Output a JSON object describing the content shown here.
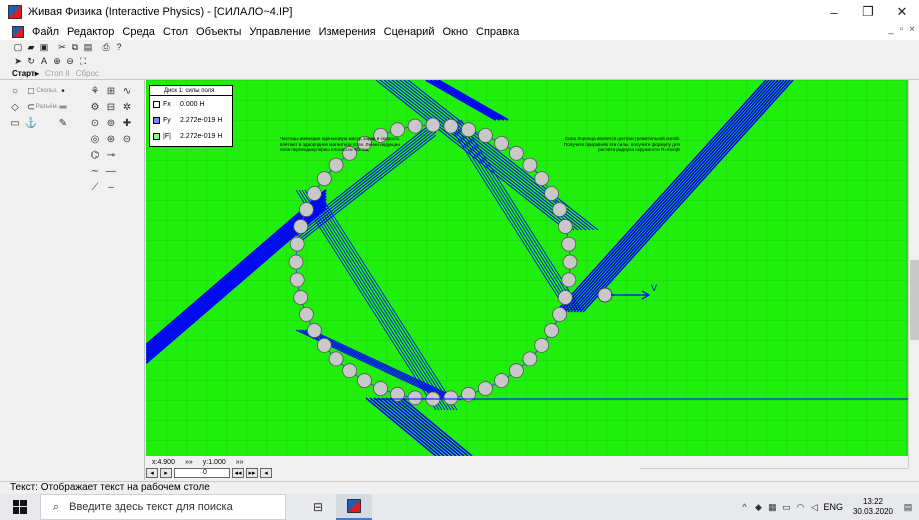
{
  "window": {
    "title": "Живая Физика (Interactive Physics) - [СИЛАЛО~4.IP]",
    "minimize": "–",
    "restore": "❐",
    "close": "✕"
  },
  "menu": {
    "items": [
      "Файл",
      "Редактор",
      "Среда",
      "Стол",
      "Объекты",
      "Управление",
      "Измерения",
      "Сценарий",
      "Окно",
      "Справка"
    ],
    "mdi_min": "_",
    "mdi_restore": "▫",
    "mdi_close": "×"
  },
  "runbar": {
    "start": "Старт▸",
    "stop": "Стоп II",
    "reset": "Сброс"
  },
  "palette": {
    "left_icons": [
      "○",
      "□",
      "◇",
      "▭",
      "⊂",
      "⊕",
      "▭",
      "⚓"
    ],
    "labels": {
      "smooth": "Скольз.",
      "rigid": "Разъём."
    },
    "tool_icons": [
      "♨",
      "⊞",
      "⇄",
      "∿",
      "⊟",
      "⊠",
      "⊡",
      "⊢",
      "⊥",
      "⊤",
      "⊣",
      "⊨",
      "⊙",
      "⊚",
      "⊛",
      "⊜",
      "⊝",
      "⊞",
      "⊟",
      "⊠",
      "⊡",
      "∼",
      "≈",
      "∽"
    ]
  },
  "meter": {
    "title": "Диск 1: силы поля",
    "rows": [
      {
        "label": "Fx",
        "value": "0.000 Н",
        "color": "#ffffff"
      },
      {
        "label": "Fy",
        "value": "2.272e-019 Н",
        "color": "#8080ff"
      },
      {
        "label": "|F|",
        "value": "2.272e-019 Н",
        "color": "#80ff80"
      }
    ]
  },
  "annotations": {
    "left": "Частицы имеющие одинаковую массу, заряд и скорость влетают в однородное магнитное поле. Линии индукции поля перпендикулярны плоскости частиц.",
    "right": "Сила Лоренца является центростремительной силой. Получите приравняв эти силы, получите формулу для расчёта радиуса окружности R=mv/qB",
    "velocity": "V"
  },
  "coords": {
    "x": "x:4.900",
    "x_arrows": "»»",
    "y": "y:1.000",
    "y_arrows": "»»"
  },
  "frame": {
    "value": "0"
  },
  "status": "Текст: Отображает текст на рабочем столе",
  "taskbar": {
    "search_placeholder": "Введите здесь текст для поиска",
    "lang": "ENG",
    "time": "13:22",
    "date": "30.03.2020"
  },
  "colors": {
    "workspace": "#1fef0a",
    "trajectory": "#0000ff",
    "disk": "#c8c8c8"
  }
}
